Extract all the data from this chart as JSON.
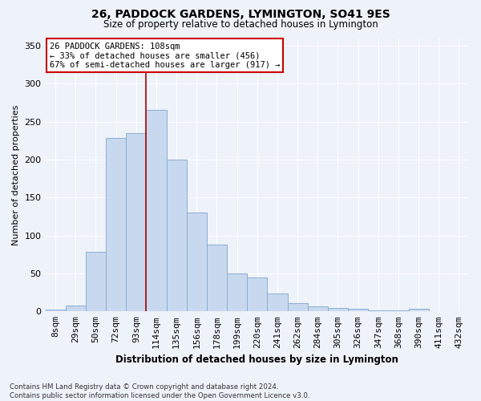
{
  "title": "26, PADDOCK GARDENS, LYMINGTON, SO41 9ES",
  "subtitle": "Size of property relative to detached houses in Lymington",
  "xlabel": "Distribution of detached houses by size in Lymington",
  "ylabel": "Number of detached properties",
  "bar_color": "#c8d8ee",
  "bar_edge_color": "#8aaed4",
  "background_color": "#eef2f9",
  "annotation_text": "26 PADDOCK GARDENS: 108sqm\n← 33% of detached houses are smaller (456)\n67% of semi-detached houses are larger (917) →",
  "bin_labels": [
    "8sqm",
    "29sqm",
    "50sqm",
    "72sqm",
    "93sqm",
    "114sqm",
    "135sqm",
    "156sqm",
    "178sqm",
    "199sqm",
    "220sqm",
    "241sqm",
    "262sqm",
    "284sqm",
    "305sqm",
    "326sqm",
    "347sqm",
    "368sqm",
    "390sqm",
    "411sqm",
    "432sqm"
  ],
  "heights": [
    2,
    8,
    78,
    228,
    235,
    265,
    200,
    130,
    88,
    50,
    45,
    24,
    11,
    7,
    5,
    4,
    1,
    1,
    3,
    0,
    0
  ],
  "ylim": [
    0,
    360
  ],
  "yticks": [
    0,
    50,
    100,
    150,
    200,
    250,
    300,
    350
  ],
  "footnote": "Contains HM Land Registry data © Crown copyright and database right 2024.\nContains public sector information licensed under the Open Government Licence v3.0.",
  "property_line_x": 5.0,
  "vline_color": "#aa0000"
}
